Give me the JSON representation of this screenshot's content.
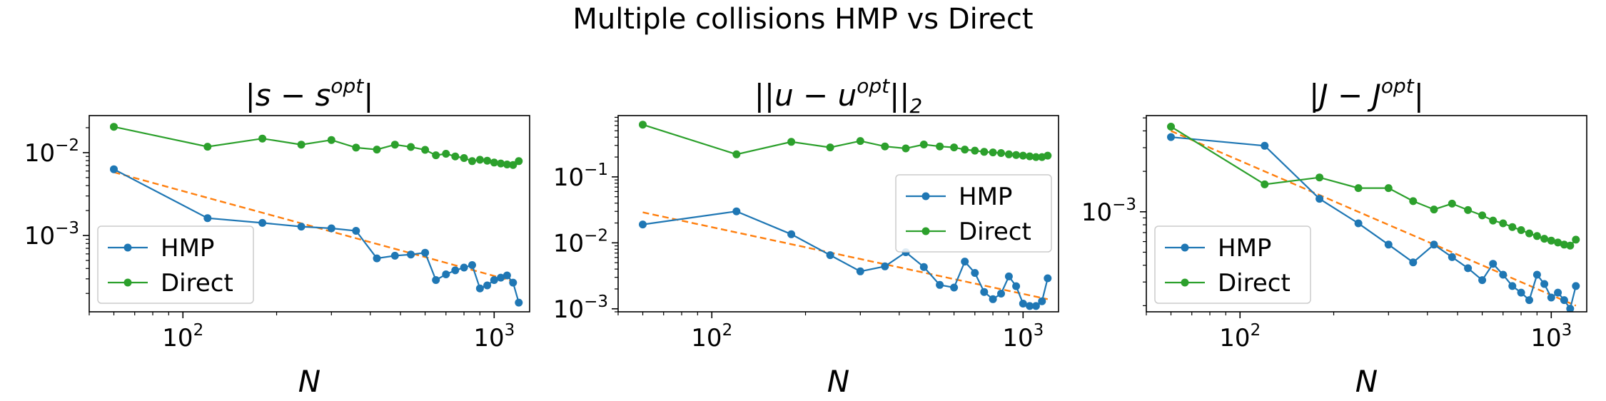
{
  "figure": {
    "suptitle": "Multiple collisions HMP vs Direct"
  },
  "chart_data": [
    {
      "type": "line",
      "title": "|s - s^opt|",
      "title_parts": [
        "|s − s",
        "opt",
        "|"
      ],
      "xlabel": "N",
      "ylabel": "",
      "xscale": "log",
      "yscale": "log",
      "xlim": [
        50,
        1300
      ],
      "ylim": [
        0.00012,
        0.028
      ],
      "xticks": [
        {
          "value": 100,
          "base": "10",
          "exp": "2"
        },
        {
          "value": 1000,
          "base": "10",
          "exp": "3"
        }
      ],
      "yticks": [
        {
          "value": 0.001,
          "base": "10",
          "exp": "−3"
        },
        {
          "value": 0.01,
          "base": "10",
          "exp": "−2"
        }
      ],
      "legend": {
        "position": "lower-left",
        "entries": [
          "HMP",
          "Direct"
        ]
      },
      "series": [
        {
          "name": "HMP",
          "color": "#1f77b4",
          "marker": "circle",
          "x": [
            60,
            120,
            180,
            240,
            300,
            360,
            420,
            480,
            540,
            600,
            650,
            700,
            750,
            800,
            850,
            900,
            950,
            1000,
            1050,
            1100,
            1150,
            1200
          ],
          "y": [
            0.0063,
            0.00162,
            0.00142,
            0.00128,
            0.00122,
            0.00114,
            0.00053,
            0.00057,
            0.00059,
            0.00062,
            0.00029,
            0.00034,
            0.00038,
            0.00041,
            0.00044,
            0.00023,
            0.00025,
            0.00029,
            0.00031,
            0.00033,
            0.00027,
            0.000155
          ]
        },
        {
          "name": "Direct",
          "color": "#2ca02c",
          "marker": "circle",
          "x": [
            60,
            120,
            180,
            240,
            300,
            360,
            420,
            480,
            540,
            600,
            650,
            700,
            750,
            800,
            850,
            900,
            950,
            1000,
            1050,
            1100,
            1150,
            1200
          ],
          "y": [
            0.0205,
            0.0118,
            0.0148,
            0.0125,
            0.0142,
            0.0115,
            0.0109,
            0.0125,
            0.0117,
            0.0108,
            0.0093,
            0.0097,
            0.009,
            0.0086,
            0.0079,
            0.0082,
            0.008,
            0.0076,
            0.0074,
            0.0072,
            0.0071,
            0.0079
          ]
        },
        {
          "name": "",
          "color": "#ff7f0e",
          "style": "dashed",
          "marker": "none",
          "x": [
            60,
            1200
          ],
          "y": [
            0.0058,
            0.00027
          ]
        }
      ]
    },
    {
      "type": "line",
      "title": "||u - u^opt||_2",
      "title_parts": [
        "||u − u",
        "opt",
        "||",
        "2"
      ],
      "xlabel": "N",
      "ylabel": "",
      "xscale": "log",
      "yscale": "log",
      "xlim": [
        50,
        1300
      ],
      "ylim": [
        0.0009,
        0.85
      ],
      "xticks": [
        {
          "value": 100,
          "base": "10",
          "exp": "2"
        },
        {
          "value": 1000,
          "base": "10",
          "exp": "3"
        }
      ],
      "yticks": [
        {
          "value": 0.001,
          "base": "10",
          "exp": "−3"
        },
        {
          "value": 0.01,
          "base": "10",
          "exp": "−2"
        },
        {
          "value": 0.1,
          "base": "10",
          "exp": "−1"
        }
      ],
      "legend": {
        "position": "center-right",
        "entries": [
          "HMP",
          "Direct"
        ]
      },
      "series": [
        {
          "name": "HMP",
          "color": "#1f77b4",
          "marker": "circle",
          "x": [
            60,
            120,
            180,
            240,
            300,
            360,
            420,
            480,
            540,
            600,
            650,
            700,
            750,
            800,
            850,
            900,
            950,
            1000,
            1050,
            1100,
            1150,
            1200
          ],
          "y": [
            0.019,
            0.03,
            0.0135,
            0.0065,
            0.0037,
            0.0044,
            0.0072,
            0.0043,
            0.0023,
            0.0021,
            0.0052,
            0.0035,
            0.0018,
            0.0014,
            0.0017,
            0.0031,
            0.0022,
            0.0012,
            0.0011,
            0.0011,
            0.0013,
            0.0029
          ]
        },
        {
          "name": "Direct",
          "color": "#2ca02c",
          "marker": "circle",
          "x": [
            60,
            120,
            180,
            240,
            300,
            360,
            420,
            480,
            540,
            600,
            650,
            700,
            750,
            800,
            850,
            900,
            950,
            1000,
            1050,
            1100,
            1150,
            1200
          ],
          "y": [
            0.62,
            0.22,
            0.34,
            0.28,
            0.35,
            0.29,
            0.27,
            0.31,
            0.29,
            0.28,
            0.26,
            0.25,
            0.24,
            0.235,
            0.23,
            0.22,
            0.215,
            0.21,
            0.205,
            0.2,
            0.2,
            0.21
          ]
        },
        {
          "name": "",
          "color": "#ff7f0e",
          "style": "dashed",
          "marker": "none",
          "x": [
            60,
            1200
          ],
          "y": [
            0.029,
            0.0014
          ]
        }
      ]
    },
    {
      "type": "line",
      "title": "|J - J^opt|",
      "title_parts": [
        "|J − J",
        "opt",
        "|"
      ],
      "xlabel": "N",
      "ylabel": "",
      "xscale": "log",
      "yscale": "log",
      "xlim": [
        50,
        1300
      ],
      "ylim": [
        0.00018,
        0.0052
      ],
      "xticks": [
        {
          "value": 100,
          "base": "10",
          "exp": "2"
        },
        {
          "value": 1000,
          "base": "10",
          "exp": "3"
        }
      ],
      "yticks": [
        {
          "value": 0.001,
          "base": "10",
          "exp": "−3"
        }
      ],
      "legend": {
        "position": "lower-left",
        "entries": [
          "HMP",
          "Direct"
        ]
      },
      "series": [
        {
          "name": "HMP",
          "color": "#1f77b4",
          "marker": "circle",
          "x": [
            60,
            120,
            180,
            240,
            300,
            360,
            420,
            480,
            540,
            600,
            650,
            700,
            750,
            800,
            850,
            900,
            950,
            1000,
            1050,
            1100,
            1150,
            1200
          ],
          "y": [
            0.0036,
            0.0031,
            0.00125,
            0.00082,
            0.00057,
            0.00042,
            0.00057,
            0.00046,
            0.00038,
            0.00031,
            0.00041,
            0.00034,
            0.00028,
            0.00025,
            0.00022,
            0.00034,
            0.00029,
            0.00023,
            0.00025,
            0.00022,
            0.00019,
            0.00028
          ]
        },
        {
          "name": "Direct",
          "color": "#2ca02c",
          "marker": "circle",
          "x": [
            60,
            120,
            180,
            240,
            300,
            360,
            420,
            480,
            540,
            600,
            650,
            700,
            750,
            800,
            850,
            900,
            950,
            1000,
            1050,
            1100,
            1150,
            1200
          ],
          "y": [
            0.0043,
            0.0016,
            0.0018,
            0.0015,
            0.0015,
            0.0012,
            0.00104,
            0.00115,
            0.00103,
            0.00094,
            0.00086,
            0.00082,
            0.00077,
            0.00073,
            0.00069,
            0.00066,
            0.00063,
            0.00061,
            0.00059,
            0.00057,
            0.00056,
            0.00062
          ]
        },
        {
          "name": "",
          "color": "#ff7f0e",
          "style": "dashed",
          "marker": "none",
          "x": [
            60,
            1200
          ],
          "y": [
            0.004,
            0.0002
          ]
        }
      ]
    }
  ]
}
